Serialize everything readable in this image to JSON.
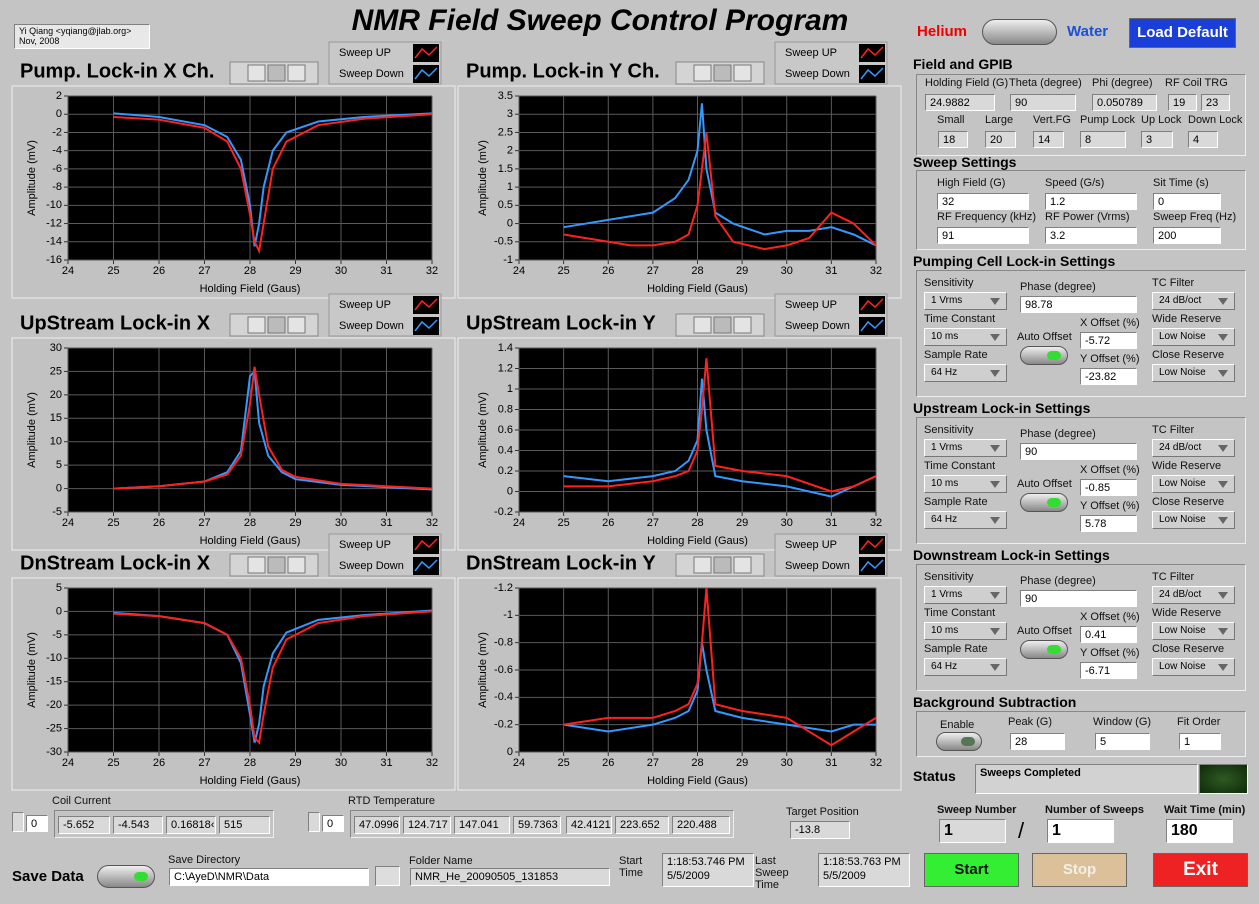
{
  "header": {
    "author": "Yi Qiang <yqiang@jlab.org>",
    "date": "Nov, 2008",
    "title": "NMR Field Sweep Control Program"
  },
  "mode": {
    "left": "Helium",
    "right": "Water",
    "button": "Load Default"
  },
  "graphs": [
    {
      "title": "Pump. Lock-in X Ch.",
      "xlabel": "Holding Field (Gaus)",
      "ylabel": "Amplitude (mV)",
      "xlim": [
        24,
        32
      ],
      "xticks": [
        24,
        25,
        26,
        27,
        28,
        29,
        30,
        31,
        32
      ],
      "ylim": [
        -16,
        2
      ],
      "yticks": [
        -16,
        -14,
        -12,
        -10,
        -8,
        -6,
        -4,
        -2,
        0,
        2
      ],
      "x": [
        25,
        26,
        27,
        27.5,
        27.8,
        28,
        28.1,
        28.2,
        28.3,
        28.5,
        28.8,
        29.5,
        30.5,
        32
      ],
      "series": [
        {
          "name": "Sweep UP",
          "color": "#ff2020",
          "values": [
            -0.3,
            -0.6,
            -1.5,
            -3,
            -6,
            -11,
            -14,
            -15,
            -12,
            -6,
            -3,
            -1.2,
            -0.5,
            0
          ]
        },
        {
          "name": "Sweep Down",
          "color": "#3399ff",
          "values": [
            0.1,
            -0.3,
            -1.2,
            -2.5,
            -5,
            -10,
            -14.5,
            -12,
            -8,
            -4,
            -2,
            -0.8,
            -0.3,
            0.1
          ]
        }
      ]
    },
    {
      "title": "Pump. Lock-in Y Ch.",
      "xlabel": "Holding Field (Gaus)",
      "ylabel": "Amplitude (mV)",
      "xlim": [
        24,
        32
      ],
      "xticks": [
        24,
        25,
        26,
        27,
        28,
        29,
        30,
        31,
        32
      ],
      "ylim": [
        -1,
        3.5
      ],
      "yticks": [
        -1,
        -0.5,
        0,
        0.5,
        1,
        1.5,
        2,
        2.5,
        3,
        3.5
      ],
      "x": [
        25,
        25.5,
        26,
        26.5,
        27,
        27.5,
        27.8,
        28,
        28.1,
        28.2,
        28.4,
        28.8,
        29.5,
        30,
        30.5,
        31,
        31.5,
        32
      ],
      "series": [
        {
          "name": "Sweep UP",
          "color": "#ff2020",
          "values": [
            -0.3,
            -0.4,
            -0.5,
            -0.6,
            -0.6,
            -0.5,
            -0.3,
            0.5,
            1.5,
            2.5,
            0.2,
            -0.5,
            -0.7,
            -0.6,
            -0.4,
            0.3,
            0,
            -0.6
          ]
        },
        {
          "name": "Sweep Down",
          "color": "#3399ff",
          "values": [
            -0.1,
            0,
            0.1,
            0.2,
            0.3,
            0.7,
            1.2,
            2,
            3.3,
            1.5,
            0.3,
            0,
            -0.3,
            -0.2,
            -0.2,
            -0.1,
            -0.3,
            -0.6
          ]
        }
      ]
    },
    {
      "title": "UpStream Lock-in X",
      "xlabel": "Holding Field (Gaus)",
      "ylabel": "Amplitude (mV)",
      "xlim": [
        24,
        32
      ],
      "xticks": [
        24,
        25,
        26,
        27,
        28,
        29,
        30,
        31,
        32
      ],
      "ylim": [
        -5,
        30
      ],
      "yticks": [
        -5,
        0,
        5,
        10,
        15,
        20,
        25,
        30
      ],
      "x": [
        25,
        26,
        27,
        27.5,
        27.8,
        28,
        28.1,
        28.2,
        28.4,
        28.7,
        29,
        30,
        31,
        32
      ],
      "series": [
        {
          "name": "Sweep UP",
          "color": "#ff2020",
          "values": [
            0,
            0.5,
            1.5,
            3,
            7,
            18,
            26,
            20,
            9,
            4,
            2.5,
            1,
            0.5,
            0
          ]
        },
        {
          "name": "Sweep Down",
          "color": "#3399ff",
          "values": [
            0,
            0.5,
            1.5,
            3.5,
            8,
            24,
            25,
            14,
            7,
            3.5,
            2,
            0.8,
            0.3,
            -0.2
          ]
        }
      ]
    },
    {
      "title": "UpStream Lock-in Y",
      "xlabel": "Holding Field (Gaus)",
      "ylabel": "Amplitude (mV)",
      "xlim": [
        24,
        32
      ],
      "xticks": [
        24,
        25,
        26,
        27,
        28,
        29,
        30,
        31,
        32
      ],
      "ylim": [
        -0.2,
        1.4
      ],
      "yticks": [
        -0.2,
        0,
        0.2,
        0.4,
        0.6,
        0.8,
        1,
        1.2,
        1.4
      ],
      "x": [
        25,
        26,
        27,
        27.5,
        27.8,
        28,
        28.1,
        28.2,
        28.4,
        29,
        30,
        31,
        31.5,
        32
      ],
      "series": [
        {
          "name": "Sweep UP",
          "color": "#ff2020",
          "values": [
            0.05,
            0.05,
            0.1,
            0.15,
            0.2,
            0.4,
            0.8,
            1.3,
            0.25,
            0.2,
            0.15,
            0,
            0.05,
            0.15
          ]
        },
        {
          "name": "Sweep Down",
          "color": "#3399ff",
          "values": [
            0.15,
            0.1,
            0.15,
            0.2,
            0.3,
            0.5,
            1.1,
            0.6,
            0.15,
            0.1,
            0.05,
            -0.05,
            0.05,
            0.15
          ]
        }
      ]
    },
    {
      "title": "DnStream Lock-in X",
      "xlabel": "Holding Field (Gaus)",
      "ylabel": "Amplitude (mV)",
      "xlim": [
        24,
        32
      ],
      "xticks": [
        24,
        25,
        26,
        27,
        28,
        29,
        30,
        31,
        32
      ],
      "ylim": [
        -30,
        5
      ],
      "yticks": [
        -30,
        -25,
        -20,
        -15,
        -10,
        -5,
        0,
        5
      ],
      "x": [
        25,
        26,
        27,
        27.5,
        27.8,
        28,
        28.1,
        28.2,
        28.3,
        28.5,
        28.8,
        29.5,
        30.5,
        32
      ],
      "series": [
        {
          "name": "Sweep UP",
          "color": "#ff2020",
          "values": [
            -0.5,
            -1,
            -2.5,
            -5,
            -10,
            -20,
            -27,
            -28,
            -22,
            -12,
            -6,
            -2.5,
            -1,
            0
          ]
        },
        {
          "name": "Sweep Down",
          "color": "#3399ff",
          "values": [
            -0.3,
            -1,
            -2.5,
            -5,
            -11,
            -22,
            -28,
            -24,
            -16,
            -9,
            -4.5,
            -1.8,
            -0.8,
            0.2
          ]
        }
      ]
    },
    {
      "title": "DnStream Lock-in Y",
      "xlabel": "Holding Field (Gaus)",
      "ylabel": "Amplitude (mV)",
      "xlim": [
        24,
        32
      ],
      "xticks": [
        24,
        25,
        26,
        27,
        28,
        29,
        30,
        31,
        32
      ],
      "ylim": [
        0,
        -1.2
      ],
      "yticks": [
        0,
        -0.2,
        -0.4,
        -0.6,
        -0.8,
        -1,
        -1.2
      ],
      "x": [
        25,
        26,
        27,
        27.5,
        27.8,
        28,
        28.1,
        28.2,
        28.4,
        29,
        30,
        31,
        31.5,
        32
      ],
      "series": [
        {
          "name": "Sweep UP",
          "color": "#ff2020",
          "values": [
            -0.2,
            -0.25,
            -0.25,
            -0.3,
            -0.35,
            -0.5,
            -0.8,
            -1.2,
            -0.35,
            -0.3,
            -0.25,
            -0.05,
            -0.15,
            -0.25
          ]
        },
        {
          "name": "Sweep Down",
          "color": "#3399ff",
          "values": [
            -0.2,
            -0.15,
            -0.2,
            -0.25,
            -0.3,
            -0.45,
            -0.8,
            -0.6,
            -0.3,
            -0.25,
            -0.2,
            -0.15,
            -0.2,
            -0.2
          ]
        }
      ]
    }
  ],
  "field_gpib": {
    "title": "Field and GPIB",
    "items": [
      {
        "label": "Holding Field (G)",
        "value": 24.9882
      },
      {
        "label": "Theta (degree)",
        "value": 90
      },
      {
        "label": "Phi (degree)",
        "value": 0.050789
      },
      {
        "label": "RF Coil TRG",
        "values": [
          19,
          23
        ]
      },
      {
        "label": "Small",
        "value": 18
      },
      {
        "label": "Large",
        "value": 20
      },
      {
        "label": "Vert.FG",
        "value": 14
      },
      {
        "label": "Pump Lock",
        "value": 8
      },
      {
        "label": "Up Lock",
        "value": 3
      },
      {
        "label": "Down Lock",
        "value": 4
      }
    ]
  },
  "sweep_settings": {
    "title": "Sweep Settings",
    "items": [
      {
        "label": "High Field (G)",
        "value": 32
      },
      {
        "label": "Speed (G/s)",
        "value": 1.2
      },
      {
        "label": "Sit Time (s)",
        "value": 0
      },
      {
        "label": "RF Frequency (kHz)",
        "value": 91
      },
      {
        "label": "RF Power (Vrms)",
        "value": 3.2
      },
      {
        "label": "Sweep Freq (Hz)",
        "value": 200
      }
    ]
  },
  "lockins": [
    {
      "title": "Pumping Cell Lock-in Settings",
      "auto_offset": "Auto Offset",
      "fields": [
        {
          "label": "Sensitivity",
          "value": "1 Vrms"
        },
        {
          "label": "Phase (degree)",
          "value": 98.78
        },
        {
          "label": "TC Filter",
          "value": "24 dB/oct"
        },
        {
          "label": "Time Constant",
          "value": "10 ms"
        },
        {
          "label": "X Offset (%)",
          "value": -5.72
        },
        {
          "label": "Wide Reserve",
          "value": "Low Noise"
        },
        {
          "label": "Sample Rate",
          "value": "64 Hz"
        },
        {
          "label": "Y Offset (%)",
          "value": -23.82
        },
        {
          "label": "Close Reserve",
          "value": "Low Noise"
        }
      ]
    },
    {
      "title": "Upstream Lock-in Settings",
      "auto_offset": "Auto Offset",
      "fields": [
        {
          "label": "Sensitivity",
          "value": "1 Vrms"
        },
        {
          "label": "Phase (degree)",
          "value": 90
        },
        {
          "label": "TC Filter",
          "value": "24 dB/oct"
        },
        {
          "label": "Time Constant",
          "value": "10 ms"
        },
        {
          "label": "X Offset (%)",
          "value": -0.85
        },
        {
          "label": "Wide Reserve",
          "value": "Low Noise"
        },
        {
          "label": "Sample Rate",
          "value": "64 Hz"
        },
        {
          "label": "Y Offset (%)",
          "value": 5.78
        },
        {
          "label": "Close Reserve",
          "value": "Low Noise"
        }
      ]
    },
    {
      "title": "Downstream Lock-in Settings",
      "auto_offset": "Auto Offset",
      "fields": [
        {
          "label": "Sensitivity",
          "value": "1 Vrms"
        },
        {
          "label": "Phase (degree)",
          "value": 90
        },
        {
          "label": "TC Filter",
          "value": "24 dB/oct"
        },
        {
          "label": "Time Constant",
          "value": "10 ms"
        },
        {
          "label": "X Offset (%)",
          "value": 0.41
        },
        {
          "label": "Wide Reserve",
          "value": "Low Noise"
        },
        {
          "label": "Sample Rate",
          "value": "64 Hz"
        },
        {
          "label": "Y Offset (%)",
          "value": -6.71
        },
        {
          "label": "Close Reserve",
          "value": "Low Noise"
        }
      ]
    }
  ],
  "background": {
    "title": "Background Subtraction",
    "enable": "Enable",
    "items": [
      {
        "label": "Peak (G)",
        "value": 28
      },
      {
        "label": "Window (G)",
        "value": 5
      },
      {
        "label": "Fit Order",
        "value": 1
      }
    ]
  },
  "status": {
    "label": "Status",
    "value": "Sweeps Completed"
  },
  "counters": [
    {
      "label": "Sweep Number",
      "value": 1
    },
    {
      "label": "Number of Sweeps",
      "value": 1
    },
    {
      "label": "Wait Time (min)",
      "value": 180
    }
  ],
  "separator": "/",
  "buttons": [
    "Start",
    "Stop",
    "Exit"
  ],
  "coil_current": {
    "label": "Coil Current",
    "index": 0,
    "values": [
      -5.652,
      -4.543,
      "0.16818‹",
      515
    ]
  },
  "rtd": {
    "label": "RTD Temperature",
    "index": 0,
    "values": [
      47.0996,
      124.717,
      147.041,
      59.7363,
      42.4121,
      223.652,
      220.488
    ]
  },
  "target": {
    "label": "Target Position",
    "value": -13.8
  },
  "save": {
    "label": "Save Data",
    "dir_label": "Save Directory",
    "dir": "C:\\AyeD\\NMR\\Data",
    "folder_label": "Folder Name",
    "folder": "NMR_He_20090505_131853",
    "start_label": "Start Time",
    "start": [
      "1:18:53.746 PM",
      "5/5/2009"
    ],
    "last_label": "Last Sweep Time",
    "last": [
      "1:18:53.763 PM",
      "5/5/2009"
    ]
  }
}
